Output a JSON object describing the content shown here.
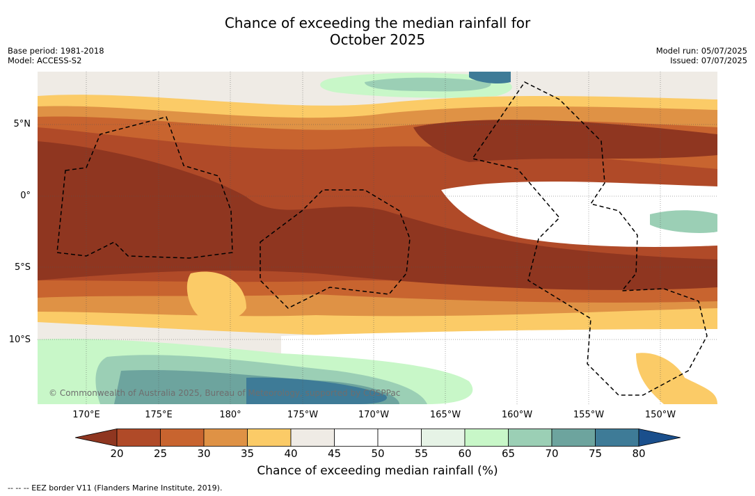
{
  "title_line1": "Chance of exceeding the median rainfall for",
  "title_line2": "October 2025",
  "meta_left": {
    "base_period": "Base period: 1981-2018",
    "model": "Model: ACCESS-S2"
  },
  "meta_right": {
    "model_run": "Model run: 05/07/2025",
    "issued": "Issued: 07/07/2025"
  },
  "lat_labels": [
    "5°N",
    "0°",
    "5°S",
    "10°S"
  ],
  "lon_labels": [
    "170°E",
    "175°E",
    "180°",
    "175°W",
    "170°W",
    "165°W",
    "160°W",
    "155°W",
    "150°W"
  ],
  "colorbar": {
    "ticks": [
      "20",
      "25",
      "30",
      "35",
      "40",
      "45",
      "50",
      "55",
      "60",
      "65",
      "70",
      "75",
      "80"
    ],
    "colors": [
      "#8f3620",
      "#b04a28",
      "#c8642f",
      "#df9245",
      "#fbcb67",
      "#efebe5",
      "#ffffff",
      "#ffffff",
      "#e6f3e6",
      "#c8f7c8",
      "#9bcfb5",
      "#6da49e",
      "#3e7b97",
      "#1a4f8c"
    ],
    "title": "Chance of exceeding median rainfall (%)"
  },
  "copyright": "© Commonwealth of Australia 2025, Bureau of Meteorology, supported by COSPPac",
  "footer": "--  --  -- EEZ border V11 (Flanders Marine Institute, 2019)."
}
